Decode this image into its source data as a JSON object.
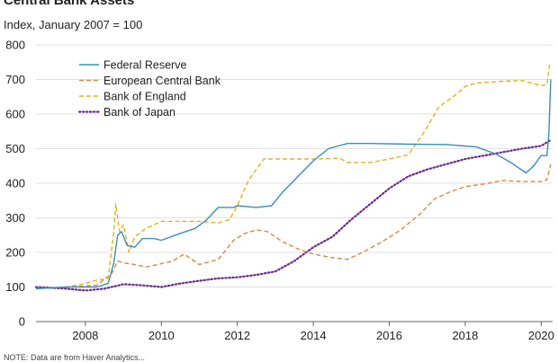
{
  "header": {
    "title": "Central Bank Assets",
    "subtitle": "Index, January 2007 = 100",
    "note": "NOTE: Data are from Haver Analytics..."
  },
  "chart_data": {
    "type": "line",
    "title": "Central Bank Assets",
    "subtitle": "Index, January 2007 = 100",
    "xlabel": "",
    "ylabel": "Index, January 2007 = 100",
    "xlim": [
      2006.7,
      2020.3
    ],
    "ylim": [
      0,
      800
    ],
    "yticks": [
      0,
      100,
      200,
      300,
      400,
      500,
      600,
      700,
      800
    ],
    "xticks": [
      2008,
      2010,
      2012,
      2014,
      2016,
      2018,
      2020
    ],
    "grid": "horizontal",
    "legend_position": "top-left",
    "series": [
      {
        "name": "Federal Reserve",
        "color": "#3a8fb7",
        "style": "solid",
        "points": [
          [
            2006.7,
            95
          ],
          [
            2007.5,
            100
          ],
          [
            2008.3,
            100
          ],
          [
            2008.6,
            110
          ],
          [
            2008.75,
            170
          ],
          [
            2008.85,
            250
          ],
          [
            2008.95,
            260
          ],
          [
            2009.1,
            220
          ],
          [
            2009.3,
            215
          ],
          [
            2009.5,
            240
          ],
          [
            2009.8,
            240
          ],
          [
            2010.0,
            235
          ],
          [
            2010.5,
            255
          ],
          [
            2010.9,
            270
          ],
          [
            2011.2,
            295
          ],
          [
            2011.5,
            330
          ],
          [
            2011.9,
            330
          ],
          [
            2012.0,
            335
          ],
          [
            2012.5,
            330
          ],
          [
            2012.9,
            335
          ],
          [
            2013.2,
            375
          ],
          [
            2013.6,
            420
          ],
          [
            2014.0,
            465
          ],
          [
            2014.4,
            500
          ],
          [
            2014.9,
            515
          ],
          [
            2015.5,
            515
          ],
          [
            2016.5,
            513
          ],
          [
            2017.5,
            512
          ],
          [
            2018.3,
            505
          ],
          [
            2018.8,
            485
          ],
          [
            2019.2,
            460
          ],
          [
            2019.6,
            430
          ],
          [
            2019.8,
            450
          ],
          [
            2020.0,
            480
          ],
          [
            2020.15,
            480
          ],
          [
            2020.2,
            540
          ],
          [
            2020.25,
            700
          ]
        ]
      },
      {
        "name": "European Central Bank",
        "color": "#d98748",
        "style": "dashed",
        "points": [
          [
            2006.7,
            95
          ],
          [
            2007.5,
            100
          ],
          [
            2008.3,
            105
          ],
          [
            2008.7,
            140
          ],
          [
            2008.85,
            175
          ],
          [
            2009.0,
            170
          ],
          [
            2009.3,
            165
          ],
          [
            2009.6,
            158
          ],
          [
            2009.9,
            165
          ],
          [
            2010.3,
            175
          ],
          [
            2010.6,
            195
          ],
          [
            2011.0,
            165
          ],
          [
            2011.5,
            180
          ],
          [
            2011.9,
            235
          ],
          [
            2012.2,
            255
          ],
          [
            2012.5,
            265
          ],
          [
            2012.8,
            260
          ],
          [
            2013.2,
            230
          ],
          [
            2013.6,
            210
          ],
          [
            2014.0,
            195
          ],
          [
            2014.5,
            185
          ],
          [
            2014.9,
            180
          ],
          [
            2015.3,
            200
          ],
          [
            2015.8,
            230
          ],
          [
            2016.3,
            265
          ],
          [
            2016.8,
            310
          ],
          [
            2017.2,
            355
          ],
          [
            2017.6,
            375
          ],
          [
            2018.0,
            390
          ],
          [
            2018.5,
            398
          ],
          [
            2019.0,
            408
          ],
          [
            2019.5,
            405
          ],
          [
            2020.0,
            405
          ],
          [
            2020.15,
            410
          ],
          [
            2020.25,
            455
          ]
        ]
      },
      {
        "name": "Bank of England",
        "color": "#e0b21e",
        "style": "dashed",
        "points": [
          [
            2006.7,
            95
          ],
          [
            2007.5,
            100
          ],
          [
            2008.0,
            110
          ],
          [
            2008.3,
            120
          ],
          [
            2008.6,
            125
          ],
          [
            2008.75,
            260
          ],
          [
            2008.8,
            340
          ],
          [
            2008.9,
            260
          ],
          [
            2009.0,
            280
          ],
          [
            2009.15,
            200
          ],
          [
            2009.3,
            245
          ],
          [
            2009.6,
            270
          ],
          [
            2010.0,
            290
          ],
          [
            2010.5,
            290
          ],
          [
            2011.0,
            290
          ],
          [
            2011.5,
            285
          ],
          [
            2011.8,
            295
          ],
          [
            2012.0,
            335
          ],
          [
            2012.3,
            410
          ],
          [
            2012.7,
            470
          ],
          [
            2013.0,
            470
          ],
          [
            2014.0,
            470
          ],
          [
            2014.7,
            472
          ],
          [
            2014.9,
            460
          ],
          [
            2015.5,
            460
          ],
          [
            2016.0,
            470
          ],
          [
            2016.5,
            482
          ],
          [
            2016.9,
            545
          ],
          [
            2017.3,
            620
          ],
          [
            2017.8,
            660
          ],
          [
            2018.0,
            680
          ],
          [
            2018.3,
            690
          ],
          [
            2019.0,
            695
          ],
          [
            2019.5,
            697
          ],
          [
            2020.0,
            682
          ],
          [
            2020.15,
            685
          ],
          [
            2020.22,
            745
          ]
        ]
      },
      {
        "name": "Bank of Japan",
        "color": "#6a2c8f",
        "style": "dotted",
        "points": [
          [
            2006.7,
            100
          ],
          [
            2007.5,
            95
          ],
          [
            2008.0,
            90
          ],
          [
            2008.5,
            95
          ],
          [
            2009.0,
            108
          ],
          [
            2009.5,
            105
          ],
          [
            2010.0,
            100
          ],
          [
            2010.5,
            110
          ],
          [
            2011.0,
            118
          ],
          [
            2011.5,
            125
          ],
          [
            2012.0,
            128
          ],
          [
            2012.5,
            135
          ],
          [
            2013.0,
            145
          ],
          [
            2013.5,
            175
          ],
          [
            2014.0,
            215
          ],
          [
            2014.5,
            245
          ],
          [
            2015.0,
            295
          ],
          [
            2015.5,
            340
          ],
          [
            2016.0,
            385
          ],
          [
            2016.5,
            420
          ],
          [
            2017.0,
            440
          ],
          [
            2017.5,
            455
          ],
          [
            2018.0,
            470
          ],
          [
            2018.5,
            480
          ],
          [
            2019.0,
            490
          ],
          [
            2019.5,
            500
          ],
          [
            2020.0,
            508
          ],
          [
            2020.25,
            525
          ]
        ]
      }
    ]
  }
}
